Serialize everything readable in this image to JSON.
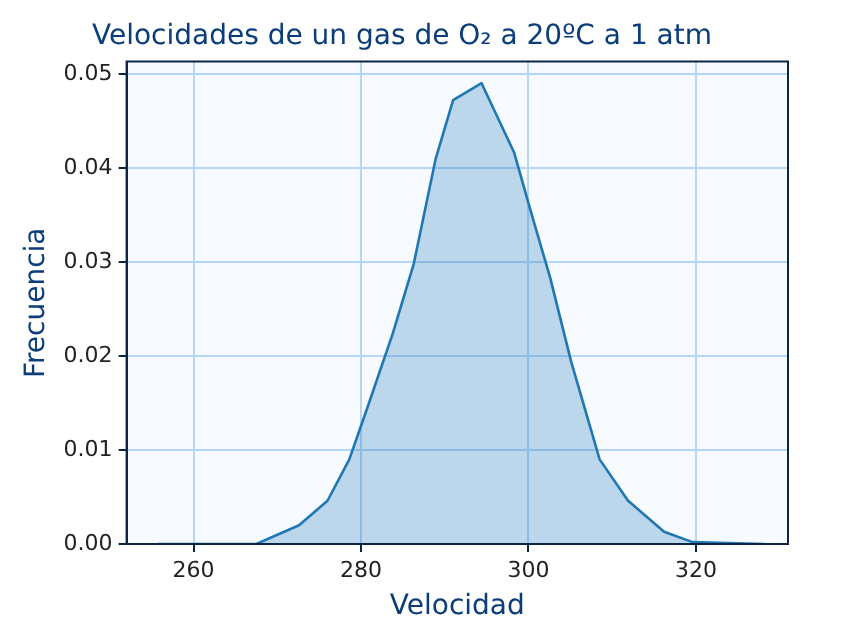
{
  "chart_data": {
    "type": "area",
    "title": "Velocidades de un gas de O₂ a 20ºC a 1 atm",
    "xlabel": "Velocidad",
    "ylabel": "Frecuencia",
    "x": [
      255.7,
      267.5,
      272.6,
      276,
      278.6,
      280.8,
      283.8,
      286.3,
      288.9,
      291,
      294.4,
      298.3,
      300.4,
      302.6,
      305.1,
      308.5,
      311.9,
      316.2,
      319.6,
      328.2
    ],
    "series": [
      {
        "color": "#1f77b4",
        "values": [
          0,
          0,
          0.002,
          0.0046,
          0.009,
          0.0146,
          0.0224,
          0.0298,
          0.0409,
          0.0472,
          0.049,
          0.0416,
          0.035,
          0.0283,
          0.0194,
          0.009,
          0.0046,
          0.0013,
          0.0002,
          0
        ]
      }
    ],
    "xlim": [
      252,
      331
    ],
    "ylim": [
      0,
      0.0513
    ],
    "xticks": [
      260,
      280,
      300,
      320
    ],
    "yticks": [
      {
        "value": 0,
        "label": "0.00"
      },
      {
        "value": 0.01,
        "label": "0.01"
      },
      {
        "value": 0.02,
        "label": "0.02"
      },
      {
        "value": 0.03,
        "label": "0.03"
      },
      {
        "value": 0.04,
        "label": "0.04"
      },
      {
        "value": 0.05,
        "label": "0.05"
      }
    ],
    "grid": true,
    "legend": false
  }
}
